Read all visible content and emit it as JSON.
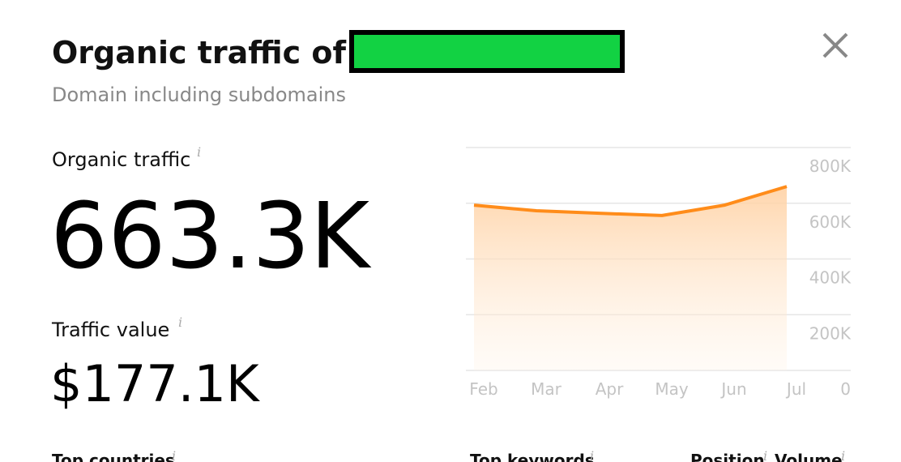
{
  "header": {
    "title": "Organic traffic of",
    "subtitle": "Domain including subdomains"
  },
  "metrics": [
    {
      "label": "Organic traffic",
      "info": "i",
      "value": "663.3K"
    },
    {
      "label": "Traffic value",
      "info": "i",
      "value": "$177.1K"
    }
  ],
  "footer_headers": [
    {
      "text": "Top countries",
      "info": "i"
    },
    {
      "text": "Top keywords",
      "info": "i"
    },
    {
      "text": "Position",
      "info": "i"
    },
    {
      "text": "Volume",
      "info": "i"
    }
  ],
  "chart_data": {
    "type": "line",
    "categories": [
      "Feb",
      "Mar",
      "Apr",
      "May",
      "Jun",
      "Jul"
    ],
    "values": [
      593000,
      573000,
      564000,
      556000,
      593000,
      660000
    ],
    "color": "#ff8c1a",
    "area": true,
    "ylim": [
      0,
      800000
    ],
    "yticks": [
      0,
      {
        "value": 200000,
        "label": "200K"
      },
      {
        "value": 400000,
        "label": "400K"
      },
      {
        "value": 600000,
        "label": "600K"
      },
      {
        "value": 800000,
        "label": "800K"
      }
    ],
    "grid": true
  }
}
